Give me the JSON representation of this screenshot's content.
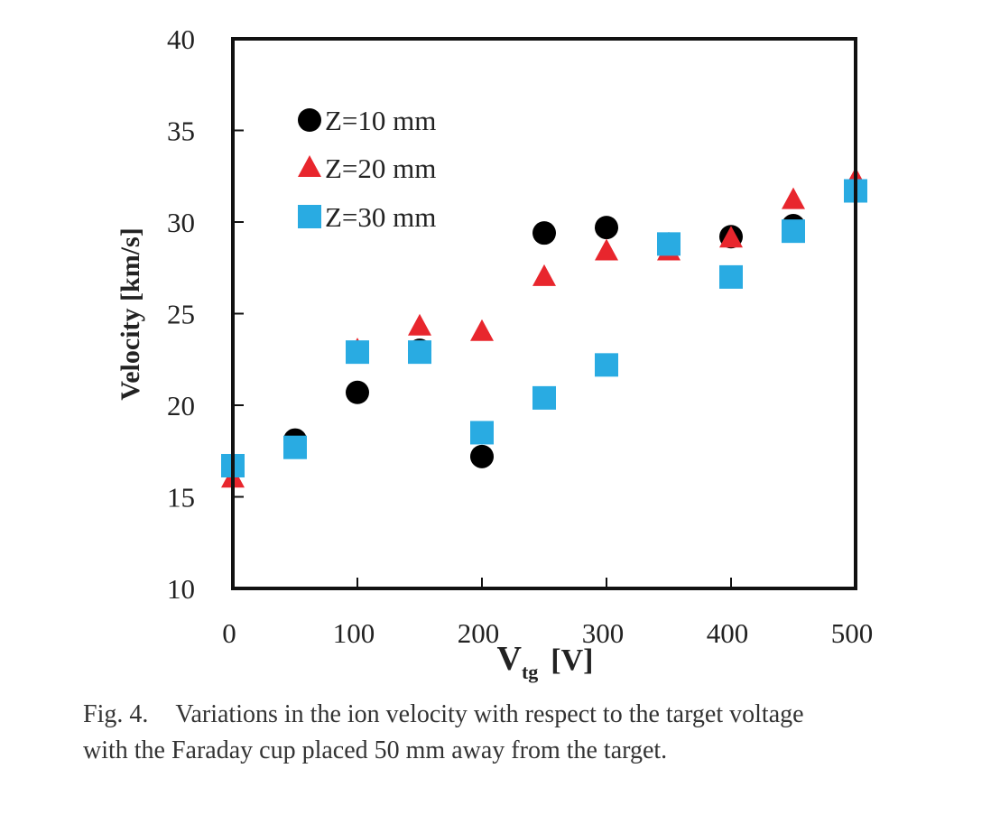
{
  "chart_data": {
    "type": "scatter",
    "ylabel": "Velocity [km/s]",
    "xlabel": {
      "main": "V",
      "sub": "tg",
      "unit": "[V]"
    },
    "xlim": [
      0,
      500
    ],
    "ylim": [
      10,
      40
    ],
    "xticks": [
      0,
      100,
      200,
      300,
      400,
      500
    ],
    "yticks": [
      10,
      15,
      20,
      25,
      30,
      35,
      40
    ],
    "grid": false,
    "legend": "top-left",
    "series": [
      {
        "name": "Z=10 mm",
        "marker": "circle",
        "color": "#000000",
        "x": [
          0,
          50,
          100,
          150,
          200,
          250,
          300,
          350,
          400,
          450,
          500
        ],
        "y": [
          16.7,
          18.1,
          20.7,
          23.0,
          17.2,
          29.4,
          29.7,
          28.8,
          29.2,
          29.8,
          31.7
        ]
      },
      {
        "name": "Z=20 mm",
        "marker": "triangle",
        "color": "#e8262d",
        "x": [
          0,
          50,
          100,
          150,
          200,
          250,
          300,
          350,
          400,
          450,
          500
        ],
        "y": [
          16.0,
          17.6,
          23.0,
          24.3,
          24.0,
          27.0,
          28.4,
          28.4,
          29.1,
          31.2,
          32.3
        ]
      },
      {
        "name": "Z=30 mm",
        "marker": "square",
        "color": "#29abe2",
        "x": [
          0,
          50,
          100,
          150,
          200,
          250,
          300,
          350,
          400,
          450,
          500
        ],
        "y": [
          16.7,
          17.7,
          22.9,
          22.9,
          18.5,
          20.4,
          22.2,
          28.8,
          27.0,
          29.5,
          31.7
        ]
      }
    ]
  },
  "caption": {
    "fig_num": "Fig. 4.",
    "line1": "Variations in the ion velocity with respect to the target voltage",
    "line2": "with the Faraday cup placed 50 mm away from the target."
  }
}
